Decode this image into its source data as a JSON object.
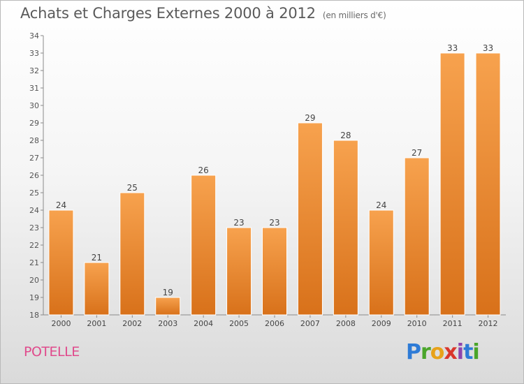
{
  "chart_data": {
    "type": "bar",
    "title": "Achats et Charges Externes 2000 à 2012",
    "subtitle": "(en milliers d'€)",
    "categories": [
      "2000",
      "2001",
      "2002",
      "2003",
      "2004",
      "2005",
      "2006",
      "2007",
      "2008",
      "2009",
      "2010",
      "2011",
      "2012"
    ],
    "values": [
      24,
      21,
      25,
      19,
      26,
      23,
      23,
      29,
      28,
      24,
      27,
      33,
      33
    ],
    "ylim": [
      18,
      34
    ],
    "yticks": [
      18,
      19,
      20,
      21,
      22,
      23,
      24,
      25,
      26,
      27,
      28,
      29,
      30,
      31,
      32,
      33,
      34
    ],
    "grid": false,
    "bar_color_top": "#f7a24e",
    "bar_color_bottom": "#d8711a"
  },
  "footer": {
    "commune": "POTELLE",
    "logo": "Proxiti"
  }
}
